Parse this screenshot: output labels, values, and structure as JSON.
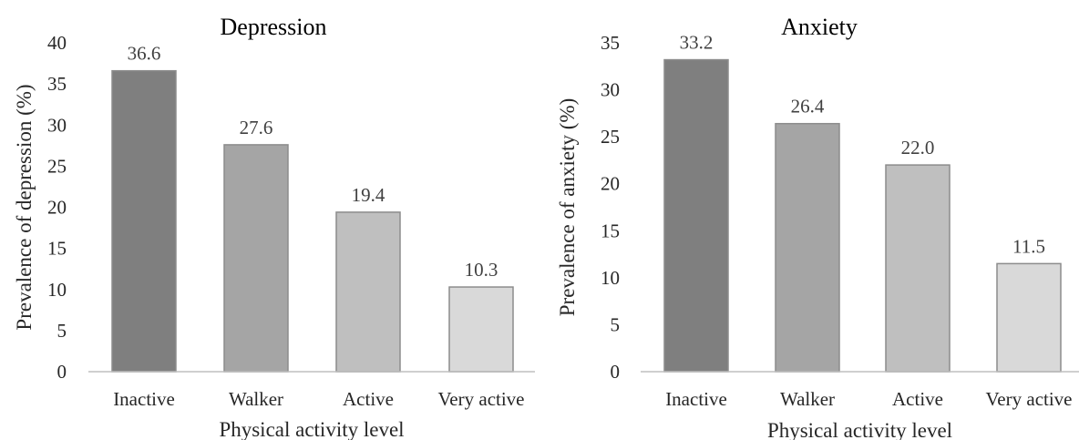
{
  "chart_data": [
    {
      "type": "bar",
      "title": "Depression",
      "xlabel": "Physical activity level",
      "ylabel": "Prevalence of depression (%)",
      "categories": [
        "Inactive",
        "Walker",
        "Active",
        "Very active"
      ],
      "values": [
        36.6,
        27.6,
        19.4,
        10.3
      ],
      "value_labels": [
        "36.6",
        "27.6",
        "19.4",
        "10.3"
      ],
      "ylim": [
        0,
        40
      ],
      "yticks": [
        0,
        5,
        10,
        15,
        20,
        25,
        30,
        35,
        40
      ],
      "bar_colors": [
        "#7f7f7f",
        "#a5a5a5",
        "#bfbfbf",
        "#d9d9d9"
      ],
      "grid": false,
      "legend": "none"
    },
    {
      "type": "bar",
      "title": "Anxiety",
      "xlabel": "Physical activity level",
      "ylabel": "Prevalence of anxiety (%)",
      "categories": [
        "Inactive",
        "Walker",
        "Active",
        "Very active"
      ],
      "values": [
        33.2,
        26.4,
        22.0,
        11.5
      ],
      "value_labels": [
        "33.2",
        "26.4",
        "22.0",
        "11.5"
      ],
      "ylim": [
        0,
        35
      ],
      "yticks": [
        0,
        5,
        10,
        15,
        20,
        25,
        30,
        35
      ],
      "bar_colors": [
        "#7f7f7f",
        "#a5a5a5",
        "#bfbfbf",
        "#d9d9d9"
      ],
      "grid": false,
      "legend": "none"
    }
  ]
}
